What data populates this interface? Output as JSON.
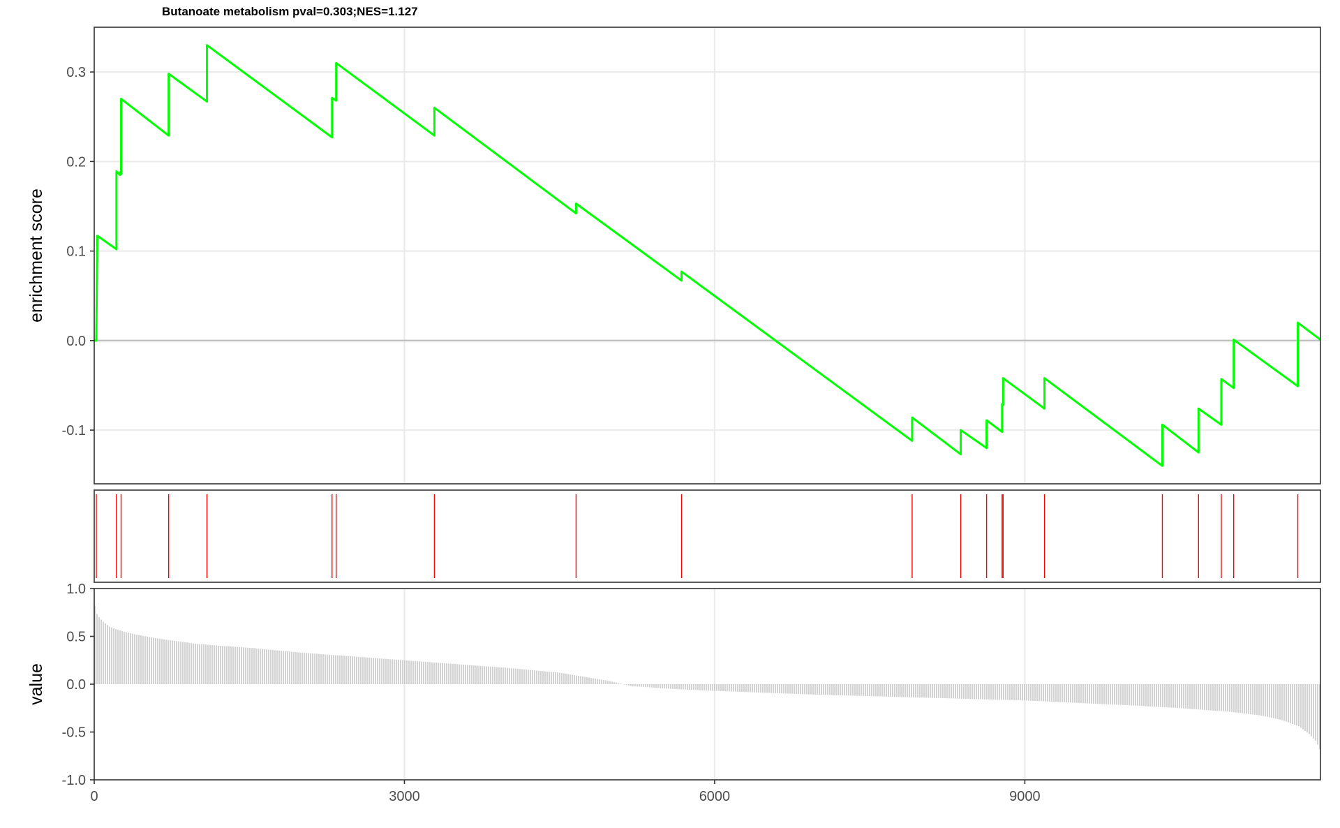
{
  "chart_data": {
    "type": "line",
    "title": "Butanoate metabolism pval=0.303;NES=1.127",
    "x_range": [
      0,
      11859
    ],
    "x_ticks": [
      0,
      3000,
      6000,
      9000
    ],
    "x_tick_labels": [
      "0",
      "3000",
      "6000",
      "9000"
    ],
    "grid": true,
    "colors": {
      "curve": "#00ff00",
      "hits": "#ff0000",
      "bars": "#bebebe",
      "zero_line": "#bfbfbf"
    },
    "panels": [
      {
        "name": "running enrichment score",
        "type": "line",
        "ylabel": "enrichment score",
        "xlabel": "",
        "ylim": [
          -0.16,
          0.35
        ],
        "y_ticks": [
          -0.1,
          0.0,
          0.1,
          0.2,
          0.3
        ],
        "y_tick_labels": [
          "-0.1",
          "0.0",
          "0.1",
          "0.2",
          "0.3"
        ],
        "series": [
          {
            "x": [
              0,
              20,
              30,
              215,
              215,
              250,
              250,
              260,
              260,
              720,
              720,
              1090,
              1090,
              2300,
              2300,
              2340,
              2340,
              3290,
              3290,
              4660,
              4660,
              5680,
              5680,
              7910,
              7910,
              8380,
              8380,
              8630,
              8630,
              8780,
              8780,
              8790,
              8790,
              9190,
              9190,
              10330,
              10330,
              10680,
              10680,
              10900,
              10900,
              11020,
              11020,
              11640,
              11640,
              11859
            ],
            "y": [
              0.0,
              0.0,
              0.117,
              0.102,
              0.189,
              0.185,
              0.188,
              0.186,
              0.27,
              0.229,
              0.298,
              0.267,
              0.33,
              0.227,
              0.271,
              0.268,
              0.31,
              0.229,
              0.26,
              0.142,
              0.153,
              0.067,
              0.077,
              -0.112,
              -0.086,
              -0.127,
              -0.1,
              -0.12,
              -0.089,
              -0.102,
              -0.071,
              -0.072,
              -0.042,
              -0.076,
              -0.042,
              -0.14,
              -0.094,
              -0.125,
              -0.076,
              -0.094,
              -0.043,
              -0.053,
              0.001,
              -0.051,
              0.02,
              0.001
            ]
          }
        ]
      },
      {
        "name": "hit positions",
        "type": "rug",
        "x": [
          20,
          215,
          260,
          720,
          1090,
          2300,
          2340,
          3290,
          4660,
          5680,
          7910,
          8380,
          8630,
          8780,
          8790,
          9190,
          10330,
          10680,
          10900,
          11020,
          11640
        ]
      },
      {
        "name": "ranked list metric",
        "type": "bar",
        "ylabel": "value",
        "xlabel": "",
        "ylim": [
          -1.0,
          1.0
        ],
        "y_ticks": [
          -1.0,
          -0.5,
          0.0,
          0.5,
          1.0
        ],
        "y_tick_labels": [
          "-1.0",
          "-0.5",
          "0.0",
          "0.5",
          "1.0"
        ],
        "x": [
          0,
          30,
          80,
          150,
          250,
          400,
          600,
          1000,
          1500,
          2000,
          2500,
          3000,
          3500,
          4000,
          4500,
          4950,
          5200,
          5600,
          6000,
          7000,
          8000,
          9000,
          10000,
          10500,
          11000,
          11300,
          11500,
          11650,
          11750,
          11820,
          11859
        ],
        "values": [
          0.85,
          0.72,
          0.66,
          0.6,
          0.56,
          0.52,
          0.48,
          0.42,
          0.38,
          0.33,
          0.29,
          0.25,
          0.21,
          0.17,
          0.12,
          0.04,
          -0.02,
          -0.05,
          -0.07,
          -0.11,
          -0.14,
          -0.17,
          -0.22,
          -0.25,
          -0.29,
          -0.33,
          -0.38,
          -0.44,
          -0.52,
          -0.6,
          -0.7
        ]
      }
    ]
  }
}
